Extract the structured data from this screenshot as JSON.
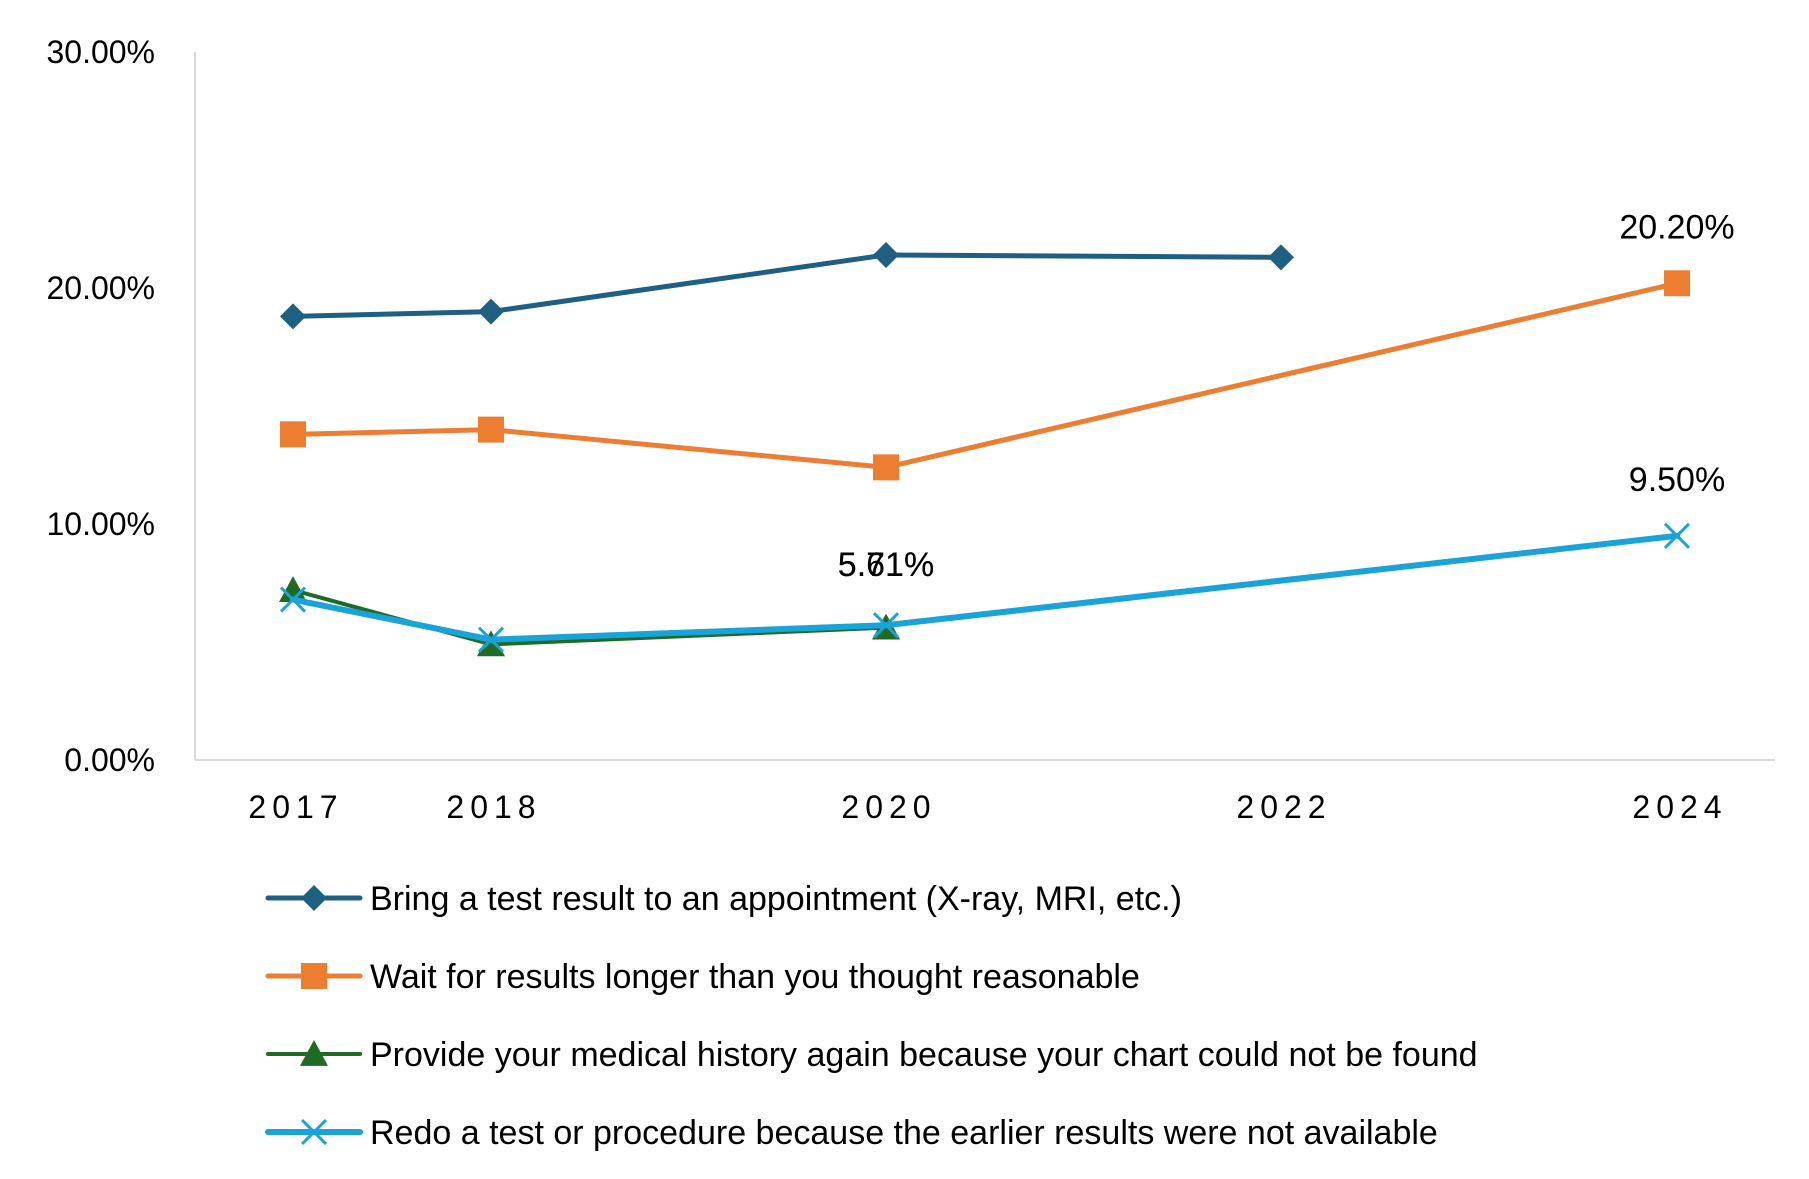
{
  "chart_data": {
    "type": "line",
    "title": "",
    "xlabel": "",
    "ylabel": "",
    "x": [
      2017,
      2018,
      2020,
      2022,
      2024
    ],
    "ylim": [
      0,
      30
    ],
    "y_ticks": [
      0,
      10,
      20,
      30
    ],
    "y_tick_labels": [
      "0.00%",
      "10.00%",
      "20.00%",
      "30.00%"
    ],
    "x_tick_labels": [
      "2017",
      "2018",
      "2020",
      "2022",
      "2024"
    ],
    "grid": false,
    "legend_position": "bottom",
    "colors": {
      "axis": "#d9d9d9"
    },
    "series": [
      {
        "name": "Bring a test result to an appointment (X-ray, MRI, etc.)",
        "color": "#1f5f82",
        "marker": "diamond",
        "stroke": 5,
        "values": [
          18.8,
          19.0,
          21.4,
          21.3,
          null
        ]
      },
      {
        "name": "Wait for results longer than you thought reasonable",
        "color": "#ed7d31",
        "marker": "square",
        "stroke": 5,
        "values": [
          13.8,
          14.0,
          12.4,
          null,
          20.2
        ]
      },
      {
        "name": "Provide your medical history again because your chart could not be found",
        "color": "#1e6b23",
        "marker": "triangle",
        "stroke": 4,
        "values": [
          7.2,
          4.9,
          5.61,
          null,
          null
        ]
      },
      {
        "name": "Redo a test or procedure because the earlier results were not available",
        "color": "#1aa3d9",
        "marker": "x",
        "stroke": 6,
        "values": [
          6.8,
          5.1,
          5.71,
          null,
          9.5
        ]
      }
    ],
    "data_labels": [
      {
        "series": 2,
        "x": 2020,
        "text": "5.61%"
      },
      {
        "series": 3,
        "x": 2020,
        "text": "5.71%"
      },
      {
        "series": 1,
        "x": 2024,
        "text": "20.20%"
      },
      {
        "series": 3,
        "x": 2024,
        "text": "9.50%"
      }
    ]
  }
}
